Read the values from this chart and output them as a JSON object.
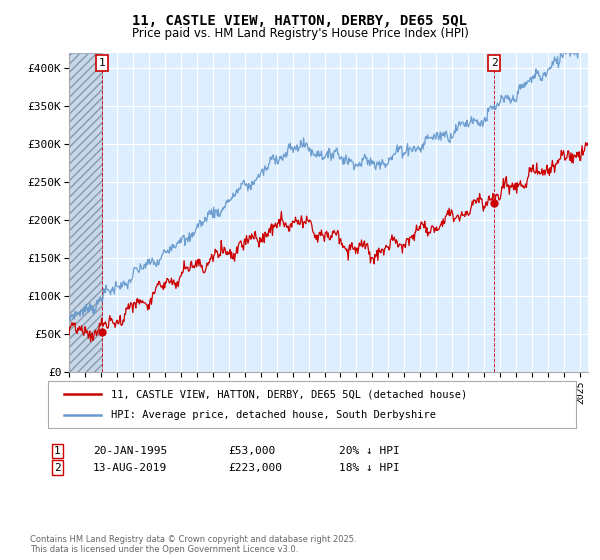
{
  "title": "11, CASTLE VIEW, HATTON, DERBY, DE65 5QL",
  "subtitle": "Price paid vs. HM Land Registry's House Price Index (HPI)",
  "ylim": [
    0,
    420000
  ],
  "yticks": [
    0,
    50000,
    100000,
    150000,
    200000,
    250000,
    300000,
    350000,
    400000
  ],
  "ytick_labels": [
    "£0",
    "£50K",
    "£100K",
    "£150K",
    "£200K",
    "£250K",
    "£300K",
    "£350K",
    "£400K"
  ],
  "legend_line1": "11, CASTLE VIEW, HATTON, DERBY, DE65 5QL (detached house)",
  "legend_line2": "HPI: Average price, detached house, South Derbyshire",
  "annotation1_date": "20-JAN-1995",
  "annotation1_price": "£53,000",
  "annotation1_hpi": "20% ↓ HPI",
  "annotation2_date": "13-AUG-2019",
  "annotation2_price": "£223,000",
  "annotation2_hpi": "18% ↓ HPI",
  "footnote": "Contains HM Land Registry data © Crown copyright and database right 2025.\nThis data is licensed under the Open Government Licence v3.0.",
  "price_paid_color": "#cc0000",
  "hpi_color": "#6699cc",
  "background_color": "#ffffff",
  "plot_bg_color": "#ddeeff",
  "grid_color": "#ffffff",
  "point1_x": 1995.05,
  "point1_y": 53000,
  "point2_x": 2019.62,
  "point2_y": 223000,
  "xmin": 1993.0,
  "xmax": 2025.5
}
